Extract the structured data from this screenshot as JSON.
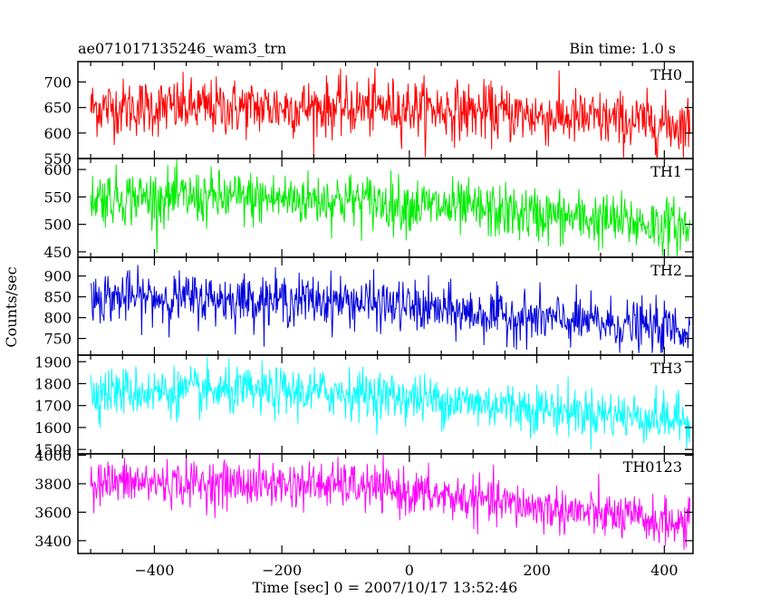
{
  "header": {
    "title": "ae071017135246_wam3_trn",
    "bin_time": "Bin time: 1.0 s"
  },
  "chart_data": {
    "type": "line",
    "xlabel": "Time [sec] 0 = 2007/10/17 13:52:46",
    "ylabel": "Counts/sec",
    "xlim": [
      -520,
      445
    ],
    "data_range": [
      -500,
      440
    ],
    "x_ticks": [
      -400,
      -200,
      0,
      200,
      400
    ],
    "x_tick_labels": [
      "−400",
      "−200",
      "0",
      "200",
      "400"
    ],
    "grid": false,
    "panels": [
      {
        "name": "TH0",
        "color": "#ff0000",
        "ylim": [
          550,
          740
        ],
        "y_ticks": [
          550,
          600,
          650,
          700
        ],
        "y_tick_labels": [
          "550",
          "600",
          "650",
          "700"
        ],
        "trend": [
          [
            -500,
            650
          ],
          [
            0,
            650
          ],
          [
            440,
            615
          ]
        ],
        "noise": 28,
        "min": 550,
        "max": 740
      },
      {
        "name": "TH1",
        "color": "#00ee00",
        "ylim": [
          440,
          620
        ],
        "y_ticks": [
          450,
          500,
          550,
          600
        ],
        "y_tick_labels": [
          "450",
          "500",
          "550",
          "600"
        ],
        "trend": [
          [
            -500,
            550
          ],
          [
            -100,
            545
          ],
          [
            440,
            495
          ]
        ],
        "noise": 25,
        "min": 440,
        "max": 620
      },
      {
        "name": "TH2",
        "color": "#0000dd",
        "ylim": [
          710,
          945
        ],
        "y_ticks": [
          750,
          800,
          850,
          900
        ],
        "y_tick_labels": [
          "750",
          "800",
          "850",
          "900"
        ],
        "trend": [
          [
            -500,
            850
          ],
          [
            -100,
            840
          ],
          [
            100,
            810
          ],
          [
            440,
            770
          ]
        ],
        "noise": 30,
        "min": 715,
        "max": 945
      },
      {
        "name": "TH3",
        "color": "#00ffff",
        "ylim": [
          1480,
          1930
        ],
        "y_ticks": [
          1500,
          1600,
          1700,
          1800,
          1900
        ],
        "y_tick_labels": [
          "1500",
          "1600",
          "1700",
          "1800",
          "1900"
        ],
        "trend": [
          [
            -500,
            1765
          ],
          [
            -100,
            1760
          ],
          [
            440,
            1630
          ]
        ],
        "noise": 55,
        "min": 1500,
        "max": 1930
      },
      {
        "name": "TH0123",
        "color": "#ff00ff",
        "ylim": [
          3310,
          4010
        ],
        "y_ticks": [
          3400,
          3600,
          3800,
          4000
        ],
        "y_tick_labels": [
          "3400",
          "3600",
          "3800",
          "4000"
        ],
        "trend": [
          [
            -500,
            3810
          ],
          [
            -100,
            3790
          ],
          [
            440,
            3510
          ]
        ],
        "noise": 80,
        "min": 3320,
        "max": 4010
      }
    ]
  }
}
